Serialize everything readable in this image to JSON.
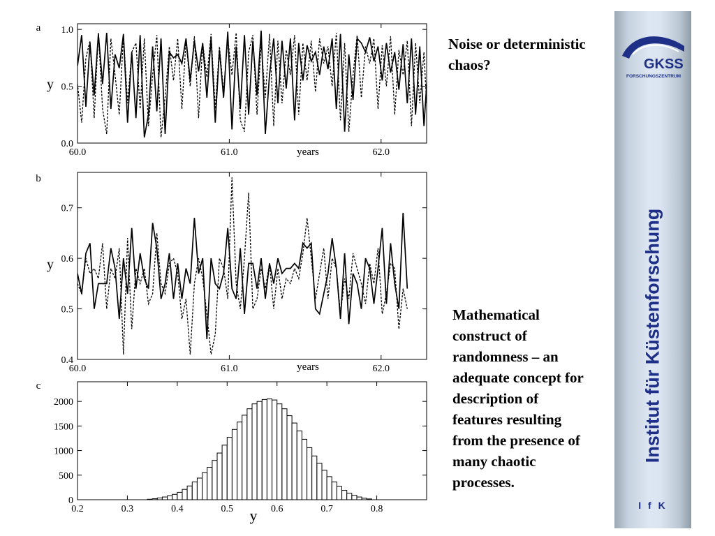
{
  "text": {
    "title": "Noise or deterministic chaos?",
    "body": "Mathematical construct of randomness – an adequate concept for description of features resulting from the presence of many chaotic processes."
  },
  "sidebar": {
    "vertical_title": "Institut für Küstenforschung",
    "logo_text": "GKSS",
    "logo_subtext": "FORSCHUNGSZENTRUM",
    "footer": "I f K",
    "accent_color": "#1d2f86"
  },
  "chart_data": [
    {
      "panel": "a",
      "type": "line",
      "xlabel": "years",
      "ylabel": "y",
      "xlim": [
        60.0,
        62.3
      ],
      "ylim": [
        0.0,
        1.05
      ],
      "xticks": [
        "60.0",
        "61.0",
        "62.0"
      ],
      "yticks": [
        "0.0",
        "0.5",
        "1.0"
      ],
      "x_start": 60.0,
      "x_step": 0.0275,
      "series": [
        {
          "style": "solid",
          "values": [
            0.68,
            0.95,
            0.32,
            0.88,
            0.42,
            0.96,
            0.52,
            0.97,
            0.3,
            0.78,
            0.66,
            0.96,
            0.18,
            0.8,
            0.22,
            0.95,
            0.05,
            0.25,
            0.85,
            0.28,
            0.92,
            0.08,
            0.8,
            0.75,
            0.78,
            0.7,
            0.92,
            0.55,
            0.9,
            0.63,
            0.88,
            0.4,
            0.93,
            0.18,
            0.82,
            0.4,
            0.98,
            0.12,
            0.85,
            0.3,
            0.95,
            0.25,
            0.9,
            0.42,
            0.99,
            0.08,
            0.6,
            0.92,
            0.35,
            0.9,
            0.48,
            0.92,
            0.2,
            0.88,
            0.55,
            0.86,
            0.72,
            0.8,
            0.6,
            0.85,
            0.65,
            0.92,
            0.3,
            0.96,
            0.1,
            0.78,
            0.38,
            0.92,
            0.88,
            0.8,
            0.93,
            0.72,
            0.85,
            0.55,
            0.88,
            0.62,
            0.8,
            0.47,
            0.87,
            0.35,
            0.92,
            0.25,
            0.85,
            0.15,
            0.72,
            0.78,
            0.6,
            0.95,
            0.4,
            0.9,
            0.3,
            0.93
          ]
        },
        {
          "style": "dotted",
          "values": [
            0.52,
            0.18,
            0.75,
            0.9,
            0.22,
            0.97,
            0.3,
            0.08,
            0.92,
            0.6,
            0.25,
            0.95,
            0.35,
            0.8,
            0.88,
            0.3,
            0.92,
            0.15,
            0.6,
            0.95,
            0.05,
            0.4,
            0.85,
            0.55,
            0.92,
            0.3,
            0.9,
            0.5,
            0.94,
            0.22,
            0.88,
            0.58,
            0.96,
            0.3,
            0.85,
            0.45,
            0.92,
            0.6,
            0.97,
            0.2,
            0.1,
            0.8,
            0.95,
            0.25,
            0.88,
            0.4,
            0.96,
            0.15,
            0.9,
            0.35,
            0.82,
            0.6,
            0.95,
            0.25,
            0.88,
            0.55,
            0.9,
            0.45,
            0.92,
            0.7,
            0.85,
            0.5,
            0.97,
            0.2,
            0.88,
            0.1,
            0.6,
            0.95,
            0.4,
            0.85,
            0.7,
            0.92,
            0.3,
            0.86,
            0.5,
            0.94,
            0.25,
            0.82,
            0.6,
            0.9,
            0.15,
            0.88,
            0.35,
            0.8,
            0.07,
            0.4,
            0.92,
            0.55,
            0.85,
            0.25,
            0.8,
            0.35
          ]
        }
      ]
    },
    {
      "panel": "b",
      "type": "line",
      "xlabel": "years",
      "ylabel": "y",
      "xlim": [
        60.0,
        62.3
      ],
      "ylim": [
        0.4,
        0.77
      ],
      "xticks": [
        "60.0",
        "61.0",
        "62.0"
      ],
      "yticks": [
        "0.4",
        "0.5",
        "0.6",
        "0.7"
      ],
      "x_start": 60.0,
      "x_step": 0.0275,
      "series": [
        {
          "style": "solid",
          "values": [
            0.57,
            0.53,
            0.61,
            0.63,
            0.5,
            0.55,
            0.55,
            0.55,
            0.62,
            0.58,
            0.48,
            0.6,
            0.53,
            0.66,
            0.54,
            0.61,
            0.56,
            0.54,
            0.67,
            0.62,
            0.52,
            0.55,
            0.61,
            0.52,
            0.59,
            0.52,
            0.58,
            0.55,
            0.68,
            0.57,
            0.6,
            0.44,
            0.6,
            0.55,
            0.54,
            0.57,
            0.66,
            0.54,
            0.52,
            0.62,
            0.49,
            0.59,
            0.59,
            0.54,
            0.6,
            0.52,
            0.59,
            0.55,
            0.6,
            0.57,
            0.58,
            0.58,
            0.59,
            0.58,
            0.63,
            0.62,
            0.63,
            0.5,
            0.49,
            0.53,
            0.57,
            0.64,
            0.58,
            0.48,
            0.61,
            0.47,
            0.57,
            0.55,
            0.5,
            0.6,
            0.58,
            0.51,
            0.58,
            0.66,
            0.51,
            0.63,
            0.55,
            0.5,
            0.69,
            0.54
          ]
        },
        {
          "style": "dotted",
          "values": [
            0.55,
            0.53,
            0.6,
            0.57,
            0.58,
            0.56,
            0.63,
            0.5,
            0.58,
            0.56,
            0.62,
            0.41,
            0.64,
            0.46,
            0.58,
            0.55,
            0.58,
            0.51,
            0.53,
            0.65,
            0.55,
            0.53,
            0.59,
            0.6,
            0.57,
            0.48,
            0.52,
            0.41,
            0.55,
            0.6,
            0.56,
            0.49,
            0.41,
            0.45,
            0.6,
            0.58,
            0.52,
            0.76,
            0.55,
            0.5,
            0.6,
            0.73,
            0.5,
            0.52,
            0.58,
            0.54,
            0.59,
            0.5,
            0.58,
            0.52,
            0.56,
            0.55,
            0.58,
            0.56,
            0.61,
            0.68,
            0.6,
            0.52,
            0.57,
            0.62,
            0.52,
            0.6,
            0.58,
            0.49,
            0.56,
            0.52,
            0.61,
            0.58,
            0.55,
            0.51,
            0.59,
            0.55,
            0.62,
            0.49,
            0.53,
            0.59,
            0.58,
            0.46,
            0.54,
            0.5
          ]
        }
      ]
    },
    {
      "panel": "c",
      "type": "bar",
      "xlabel": "y",
      "ylabel": "",
      "xlim": [
        0.2,
        0.9
      ],
      "ylim": [
        0,
        2400
      ],
      "xticks": [
        "0.2",
        "0.3",
        "0.4",
        "0.5",
        "0.6",
        "0.7",
        "0.8"
      ],
      "yticks": [
        "0",
        "500",
        "1000",
        "1500",
        "2000"
      ],
      "bin_start": 0.34,
      "bin_width": 0.01,
      "values": [
        10,
        20,
        35,
        55,
        80,
        110,
        150,
        210,
        280,
        360,
        440,
        550,
        660,
        800,
        950,
        1110,
        1270,
        1430,
        1580,
        1720,
        1850,
        1950,
        2000,
        2040,
        2050,
        2030,
        1950,
        1850,
        1710,
        1560,
        1400,
        1230,
        1060,
        890,
        740,
        600,
        470,
        360,
        270,
        190,
        130,
        90,
        55,
        30,
        15
      ]
    }
  ]
}
